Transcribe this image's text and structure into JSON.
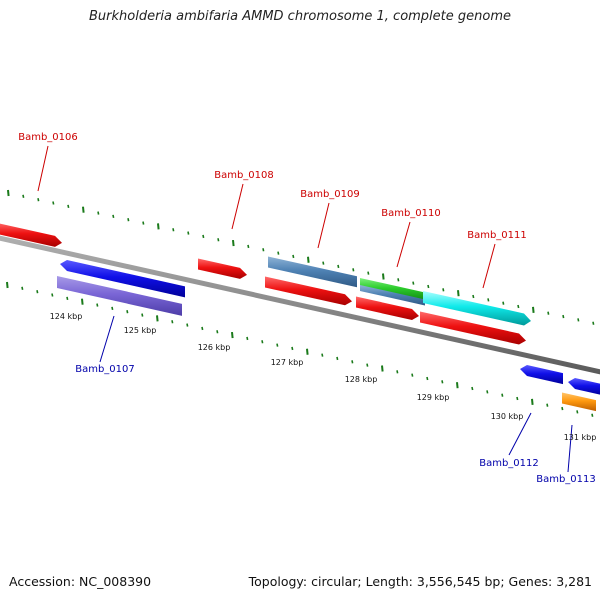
{
  "title": "Burkholderia ambifaria AMMD chromosome 1, complete genome",
  "footer": {
    "accession": "Accession: NC_008390",
    "summary": "Topology: circular; Length: 3,556,545 bp; Genes: 3,281"
  },
  "colors": {
    "forward_label": "#cc0000",
    "reverse_label": "#0000aa",
    "tick": "#1a7a1a",
    "backbone": "#8a8a8a"
  },
  "scale": {
    "ticks": [
      "124 kbp",
      "125 kbp",
      "126 kbp",
      "127 kbp",
      "128 kbp",
      "129 kbp",
      "130 kbp",
      "131 kbp"
    ]
  },
  "genes": [
    {
      "label": "Bamb_0106",
      "strand": "forward",
      "color": "red"
    },
    {
      "label": "Bamb_0107",
      "strand": "reverse",
      "color": "purple"
    },
    {
      "label": "Bamb_0108",
      "strand": "forward",
      "color": "red"
    },
    {
      "label": "Bamb_0109",
      "strand": "forward",
      "color": "steelblue"
    },
    {
      "label": "Bamb_0110",
      "strand": "forward",
      "color": "green"
    },
    {
      "label": "Bamb_0111",
      "strand": "forward",
      "color": "cyan"
    },
    {
      "label": "Bamb_0112",
      "strand": "reverse",
      "color": "blue"
    },
    {
      "label": "Bamb_0113",
      "strand": "reverse",
      "color": "orange"
    }
  ]
}
